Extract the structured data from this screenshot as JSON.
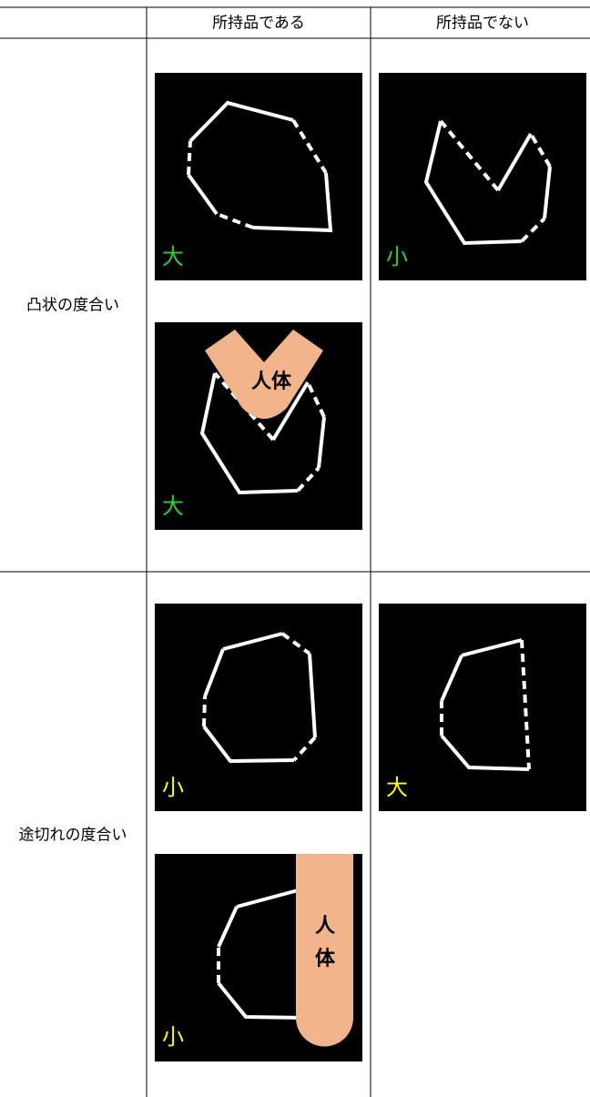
{
  "table": {
    "columns": [
      "所持品である",
      "所持品でない"
    ],
    "rows": [
      {
        "label": "凸状の度合い",
        "cells": [
          [
            {
              "level": "大"
            },
            {
              "level": "大",
              "body": "人体"
            }
          ],
          [
            {
              "level": "小"
            }
          ]
        ]
      },
      {
        "label": "途切れの度合い",
        "cells": [
          [
            {
              "level": "小"
            },
            {
              "level": "小",
              "body": [
                "人",
                "体"
              ]
            }
          ],
          [
            {
              "level": "大"
            }
          ]
        ]
      }
    ]
  }
}
